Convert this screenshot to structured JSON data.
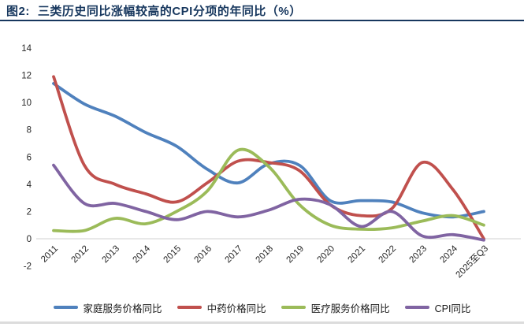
{
  "header": {
    "title_prefix": "图2:",
    "title_text": "三类历史同比涨幅较高的CPI分项的年同比（%）"
  },
  "colors": {
    "title": "#17375e",
    "header_rule": "#17375e",
    "axis_text": "#262626",
    "gridline": "#d9d9d9",
    "bottom_rule": "#dcdcdc",
    "background": "#ffffff"
  },
  "chart_data": {
    "type": "line",
    "smooth": true,
    "title": "三类历史同比涨幅较高的CPI分项的年同比（%）",
    "categories": [
      "2011",
      "2012",
      "2013",
      "2014",
      "2015",
      "2016",
      "2017",
      "2018",
      "2019",
      "2020",
      "2021",
      "2022",
      "2023",
      "2024",
      "2025至Q3"
    ],
    "series": [
      {
        "name": "家庭服务价格同比",
        "color": "#4f81bd",
        "values": [
          11.4,
          9.9,
          9.0,
          7.8,
          6.8,
          5.1,
          4.1,
          5.5,
          5.4,
          2.8,
          2.8,
          2.7,
          1.9,
          1.6,
          2.0
        ]
      },
      {
        "name": "中药价格同比",
        "color": "#c0504d",
        "values": [
          11.9,
          5.4,
          4.0,
          3.3,
          2.7,
          4.1,
          5.7,
          5.6,
          5.0,
          2.5,
          1.7,
          2.2,
          5.6,
          3.6,
          0.0
        ]
      },
      {
        "name": "医疗服务价格同比",
        "color": "#9bbb59",
        "values": [
          0.6,
          0.6,
          1.5,
          1.1,
          2.0,
          3.5,
          6.5,
          5.3,
          2.5,
          1.0,
          0.7,
          0.8,
          1.3,
          1.7,
          1.0
        ]
      },
      {
        "name": "CPI同比",
        "color": "#8064a2",
        "values": [
          5.4,
          2.6,
          2.6,
          2.0,
          1.4,
          2.0,
          1.6,
          2.1,
          2.9,
          2.5,
          0.9,
          2.0,
          0.2,
          0.3,
          -0.1
        ]
      }
    ],
    "y_axis": {
      "min": -2,
      "max": 14,
      "step": 2
    },
    "x_label_rotation_deg": -45,
    "legend_position": "bottom",
    "gridlines": "zero-line-only"
  }
}
